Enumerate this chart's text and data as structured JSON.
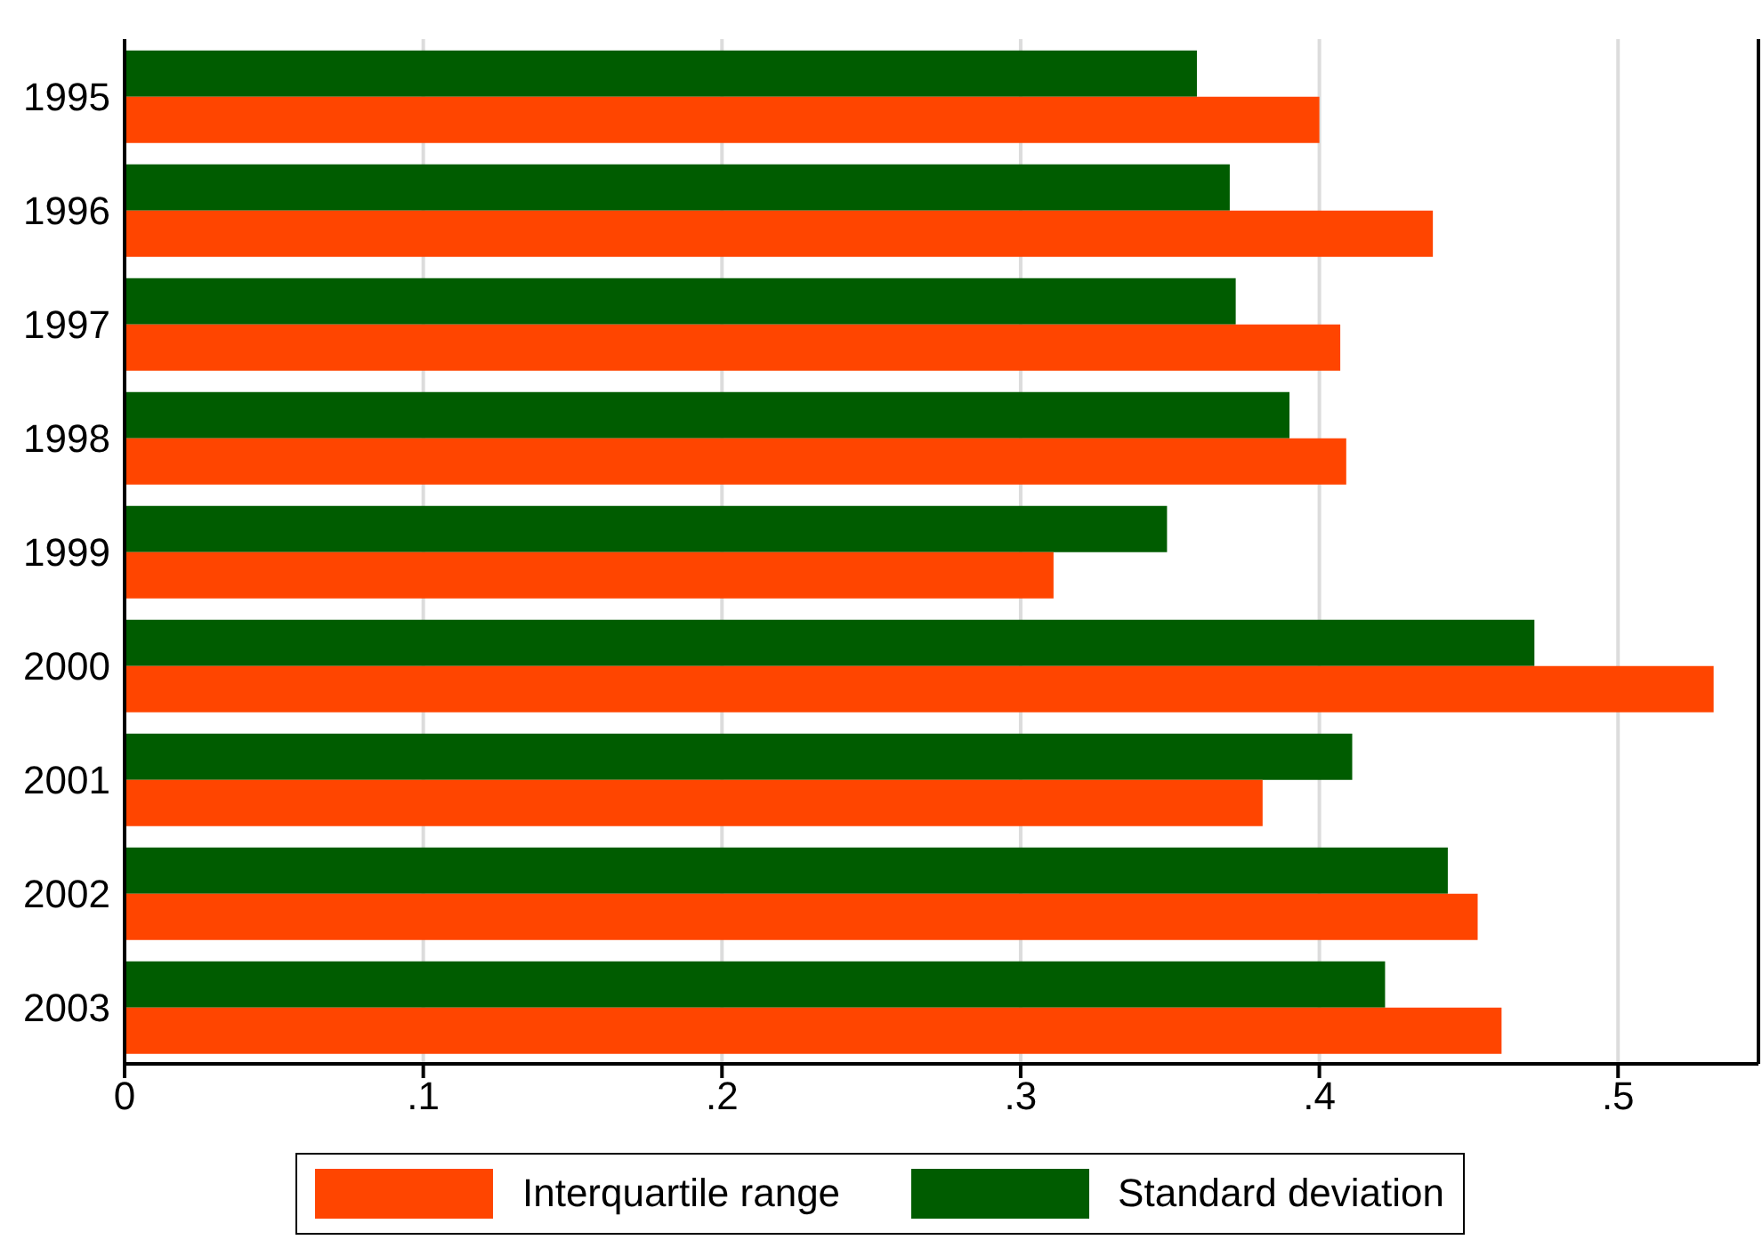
{
  "chart_data": {
    "type": "bar",
    "orientation": "horizontal",
    "categories": [
      "1995",
      "1996",
      "1997",
      "1998",
      "1999",
      "2000",
      "2001",
      "2002",
      "2003"
    ],
    "series": [
      {
        "name": "Standard deviation",
        "color": "#005c00",
        "values": [
          0.359,
          0.37,
          0.372,
          0.39,
          0.349,
          0.472,
          0.411,
          0.443,
          0.422
        ]
      },
      {
        "name": "Interquartile range",
        "color": "#ff4500",
        "values": [
          0.4,
          0.438,
          0.407,
          0.409,
          0.311,
          0.532,
          0.381,
          0.453,
          0.461
        ]
      }
    ],
    "xlim": [
      0,
      0.547
    ],
    "xticks": [
      0,
      {
        "value": 0.1,
        "label": ".1"
      },
      {
        "value": 0.2,
        "label": ".2"
      },
      {
        "value": 0.3,
        "label": ".3"
      },
      {
        "value": 0.4,
        "label": ".4"
      },
      {
        "value": 0.5,
        "label": ".5"
      }
    ],
    "grid": "x",
    "legend": "bottom"
  }
}
